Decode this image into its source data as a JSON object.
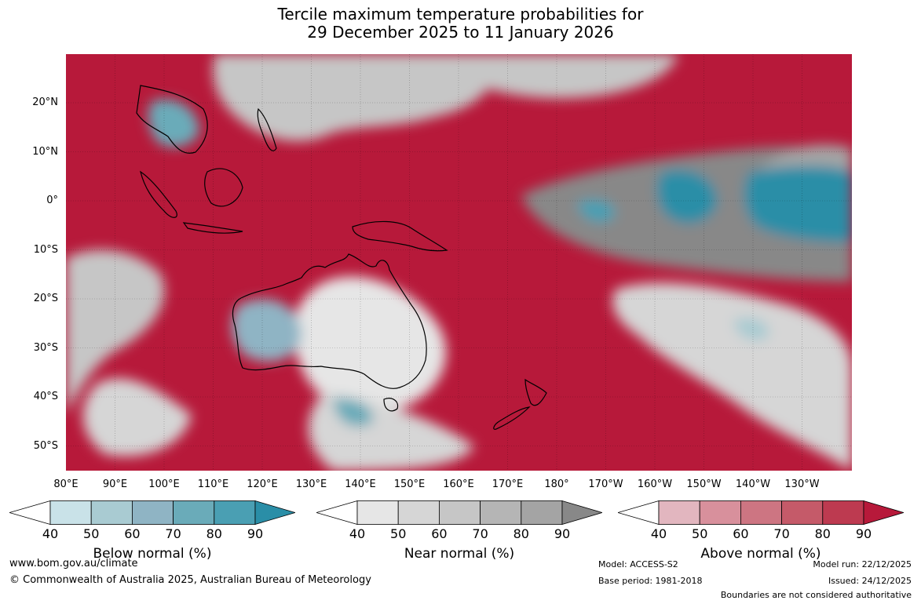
{
  "title_line1": "Tercile maximum temperature probabilities for",
  "title_line2": "29 December 2025 to 11 January 2026",
  "lat_labels": [
    "20°N",
    "10°N",
    "0°",
    "10°S",
    "20°S",
    "30°S",
    "40°S",
    "50°S"
  ],
  "lon_labels": [
    "80°E",
    "90°E",
    "100°E",
    "110°E",
    "120°E",
    "130°E",
    "140°E",
    "150°E",
    "160°E",
    "170°E",
    "180°",
    "170°W",
    "160°W",
    "150°W",
    "140°W",
    "130°W"
  ],
  "colors": {
    "above": [
      "#e2b6bf",
      "#d8909c",
      "#cd7582",
      "#c55a69",
      "#bd3a50",
      "#b7193a"
    ],
    "near": [
      "#e6e6e6",
      "#d6d6d6",
      "#c6c6c6",
      "#b5b5b5",
      "#a4a4a4",
      "#888888"
    ],
    "below": [
      "#c9e2e8",
      "#a9cbd2",
      "#8fb4c4",
      "#6aabb9",
      "#4a9fb3",
      "#2a8ea7"
    ]
  },
  "colorbars": [
    {
      "label": "Below normal (%)",
      "ticks": [
        "40",
        "50",
        "60",
        "70",
        "80",
        "90"
      ],
      "palette": "below"
    },
    {
      "label": "Near normal (%)",
      "ticks": [
        "40",
        "50",
        "60",
        "70",
        "80",
        "90"
      ],
      "palette": "near"
    },
    {
      "label": "Above normal (%)",
      "ticks": [
        "40",
        "50",
        "60",
        "70",
        "80",
        "90"
      ],
      "palette": "above"
    }
  ],
  "footer": {
    "website": "www.bom.gov.au/climate",
    "copyright": "© Commonwealth of Australia 2025, Australian Bureau of Meteorology",
    "model": "Model: ACCESS-S2",
    "base_period": "Base period: 1981-2018",
    "model_run": "Model run: 22/12/2025",
    "issued": "Issued: 24/12/2025",
    "disclaimer": "Boundaries are not considered authoritative"
  }
}
